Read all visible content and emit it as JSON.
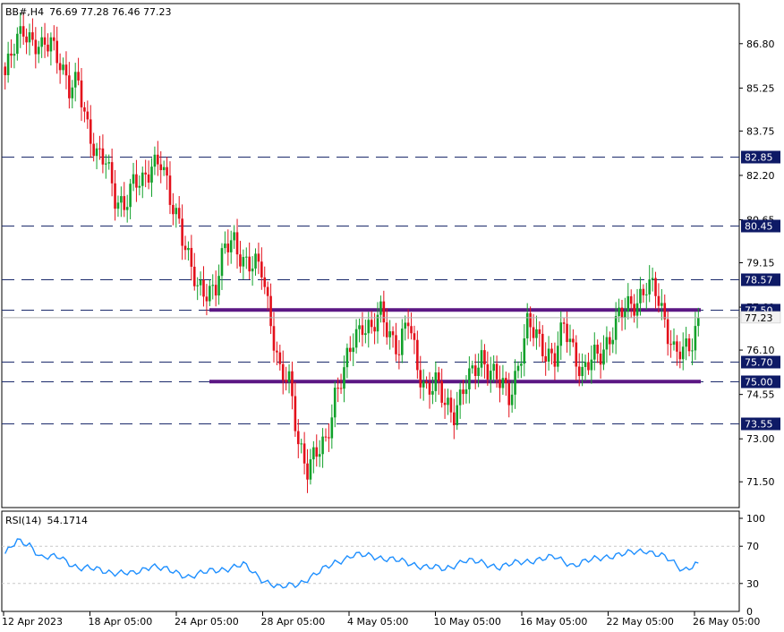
{
  "header": {
    "symbol": "BB#,H4",
    "ohlc": "76.69 77.28 76.46 77.23"
  },
  "rsi_header": {
    "label": "RSI(14)",
    "value": "54.1714"
  },
  "colors": {
    "bull": "#12a12b",
    "bear": "#e3101b",
    "level_line": "#1b2a6b",
    "level_box": "#0e1a66",
    "zone_line": "#5b1784",
    "rsi_line": "#1e8fff",
    "current_box": "#f2f2f2"
  },
  "chart_data": [
    {
      "type": "candlestick",
      "title": "BB#,H4",
      "ylim": [
        70.6,
        88.2
      ],
      "y_ticks": [
        "86.80",
        "85.25",
        "83.75",
        "82.20",
        "80.65",
        "79.15",
        "77.60",
        "76.10",
        "74.55",
        "73.00",
        "71.50"
      ],
      "x_ticks": [
        "12 Apr 2023",
        "18 Apr 05:00",
        "24 Apr 05:00",
        "28 Apr 05:00",
        "4 May 05:00",
        "10 May 05:00",
        "16 May 05:00",
        "22 May 05:00",
        "26 May 05:00"
      ],
      "horizontal_levels": [
        "82.85",
        "80.45",
        "78.57",
        "77.50",
        "75.70",
        "75.00",
        "73.55"
      ],
      "zones": [
        77.5,
        75.0
      ],
      "current_price": "77.23",
      "anchors": [
        [
          0,
          85.7
        ],
        [
          3,
          86.6
        ],
        [
          6,
          87.4
        ],
        [
          9,
          86.9
        ],
        [
          12,
          86.5
        ],
        [
          15,
          86.9
        ],
        [
          18,
          86.3
        ],
        [
          21,
          85.1
        ],
        [
          24,
          85.4
        ],
        [
          27,
          84.0
        ],
        [
          30,
          82.9
        ],
        [
          33,
          82.6
        ],
        [
          36,
          81.5
        ],
        [
          39,
          81.2
        ],
        [
          42,
          81.8
        ],
        [
          45,
          82.0
        ],
        [
          48,
          82.7
        ],
        [
          51,
          82.6
        ],
        [
          54,
          81.3
        ],
        [
          57,
          80.7
        ],
        [
          60,
          79.3
        ],
        [
          63,
          78.1
        ],
        [
          66,
          78.2
        ],
        [
          69,
          78.4
        ],
        [
          72,
          79.6
        ],
        [
          75,
          79.9
        ],
        [
          78,
          79.3
        ],
        [
          81,
          79.0
        ],
        [
          84,
          78.9
        ],
        [
          87,
          77.2
        ],
        [
          90,
          75.3
        ],
        [
          93,
          74.9
        ],
        [
          96,
          73.0
        ],
        [
          99,
          72.0
        ],
        [
          102,
          72.4
        ],
        [
          105,
          72.9
        ],
        [
          108,
          74.6
        ],
        [
          111,
          75.3
        ],
        [
          114,
          76.4
        ],
        [
          117,
          77.1
        ],
        [
          120,
          76.8
        ],
        [
          123,
          77.3
        ],
        [
          126,
          76.7
        ],
        [
          129,
          76.2
        ],
        [
          132,
          77.1
        ],
        [
          135,
          75.5
        ],
        [
          138,
          74.8
        ],
        [
          141,
          74.9
        ],
        [
          144,
          74.2
        ],
        [
          147,
          74.0
        ],
        [
          150,
          74.7
        ],
        [
          153,
          75.2
        ],
        [
          156,
          75.9
        ],
        [
          159,
          75.4
        ],
        [
          162,
          74.9
        ],
        [
          165,
          74.5
        ],
        [
          168,
          75.6
        ],
        [
          171,
          76.9
        ],
        [
          174,
          76.6
        ],
        [
          177,
          76.1
        ],
        [
          180,
          75.8
        ],
        [
          183,
          76.9
        ],
        [
          186,
          76.2
        ],
        [
          189,
          75.3
        ],
        [
          192,
          75.7
        ],
        [
          195,
          76.0
        ],
        [
          198,
          76.6
        ],
        [
          201,
          77.2
        ],
        [
          204,
          77.6
        ],
        [
          207,
          77.9
        ],
        [
          210,
          78.3
        ],
        [
          213,
          78.1
        ],
        [
          216,
          77.2
        ],
        [
          219,
          76.1
        ],
        [
          222,
          75.9
        ],
        [
          225,
          76.4
        ],
        [
          227,
          77.23
        ]
      ],
      "rsi": {
        "label": "RSI(14)",
        "value": 54.1714,
        "ylim": [
          0,
          100
        ],
        "ticks": [
          "100",
          "70",
          "30",
          "0"
        ],
        "levels": [
          70,
          30
        ],
        "anchors": [
          [
            0,
            62
          ],
          [
            4,
            75
          ],
          [
            8,
            72
          ],
          [
            12,
            58
          ],
          [
            18,
            58
          ],
          [
            24,
            47
          ],
          [
            30,
            45
          ],
          [
            36,
            42
          ],
          [
            42,
            40
          ],
          [
            48,
            50
          ],
          [
            54,
            43
          ],
          [
            60,
            38
          ],
          [
            66,
            42
          ],
          [
            72,
            46
          ],
          [
            78,
            50
          ],
          [
            84,
            35
          ],
          [
            90,
            25
          ],
          [
            96,
            30
          ],
          [
            102,
            40
          ],
          [
            108,
            53
          ],
          [
            114,
            60
          ],
          [
            120,
            60
          ],
          [
            126,
            56
          ],
          [
            132,
            52
          ],
          [
            138,
            48
          ],
          [
            144,
            45
          ],
          [
            150,
            55
          ],
          [
            156,
            52
          ],
          [
            162,
            48
          ],
          [
            168,
            52
          ],
          [
            174,
            56
          ],
          [
            180,
            58
          ],
          [
            186,
            50
          ],
          [
            192,
            55
          ],
          [
            198,
            60
          ],
          [
            204,
            62
          ],
          [
            210,
            66
          ],
          [
            216,
            58
          ],
          [
            222,
            45
          ],
          [
            227,
            52
          ]
        ]
      }
    }
  ]
}
